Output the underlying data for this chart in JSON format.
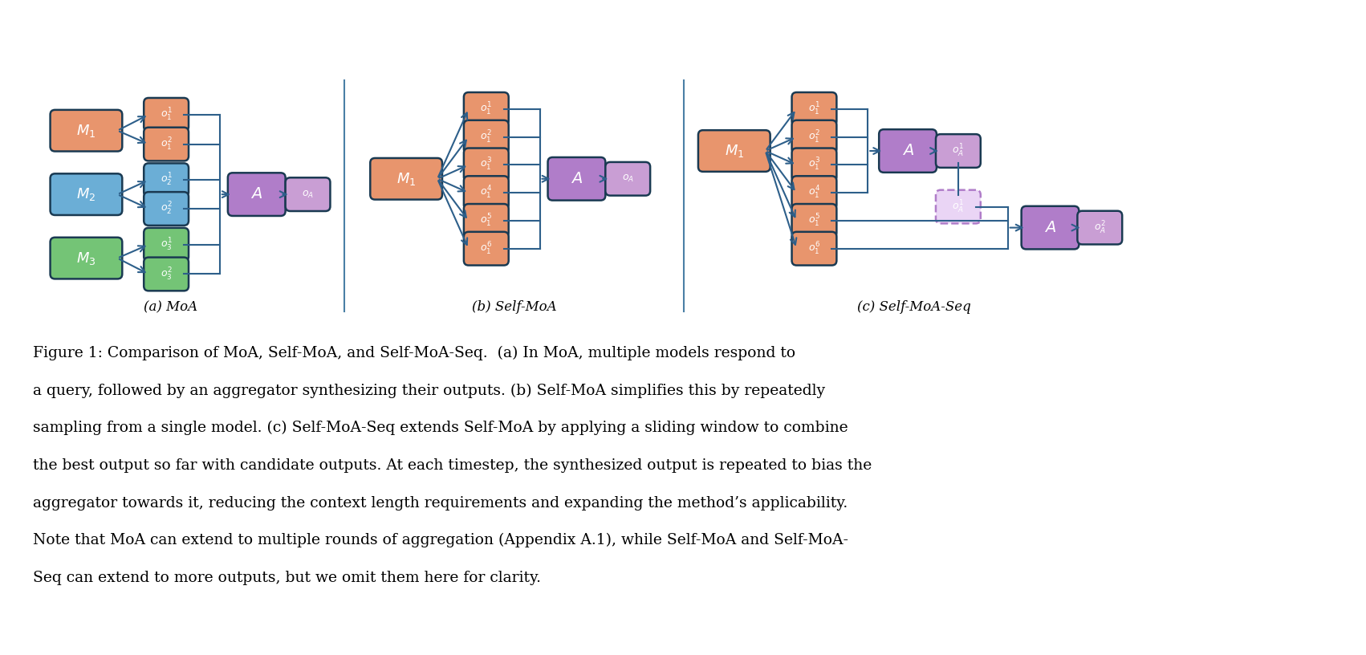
{
  "bg_color": "#ffffff",
  "arrow_color": "#2d5f8a",
  "box_border_color": "#1a3a52",
  "colors": {
    "orange": "#E8956D",
    "blue": "#6BAED6",
    "green": "#74C476",
    "purple": "#B07DC9",
    "purple_light": "#C99ED4"
  },
  "divider_color": "#4a7fa5",
  "caption_a": "(a) MoA",
  "caption_b": "(b) Self-MoA",
  "caption_c": "(c) Self-MoA-Seq",
  "figure_caption_line1": "Figure 1: Comparison of MoA, Self-MoA, and Self-MoA-Seq.  (a) In MoA, multiple models respond to",
  "figure_caption_line2": "a query, followed by an aggregator synthesizing their outputs. (b) Self-MoA simplifies this by repeatedly",
  "figure_caption_line3": "sampling from a single model. (c) Self-MoA-Seq extends Self-MoA by applying a sliding window to combine",
  "figure_caption_line4": "the best output so far with candidate outputs. At each timestep, the synthesized output is repeated to bias the",
  "figure_caption_line5": "aggregator towards it, reducing the context length requirements and expanding the method’s applicability.",
  "figure_caption_line6": "Note that MoA can extend to multiple rounds of aggregation (Appendix A.1), while Self-MoA and Self-MoA-",
  "figure_caption_line7": "Seq can extend to more outputs, but we omit them here for clarity."
}
